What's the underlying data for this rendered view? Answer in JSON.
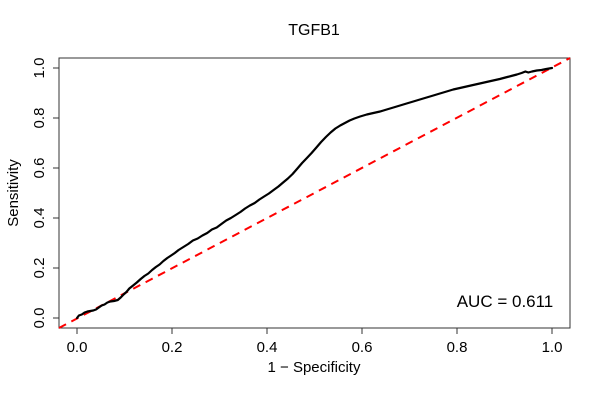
{
  "figure": {
    "background": "#FFFFFF",
    "box_color": "#333333",
    "text_color": "#000000"
  },
  "chart_data": {
    "type": "line",
    "subtype": "roc-curve",
    "title": "TGFB1",
    "xlabel": "1 − Specificity",
    "ylabel": "Sensitivity",
    "xlim": [
      0,
      1
    ],
    "ylim": [
      0,
      1
    ],
    "grid": false,
    "legend": "none",
    "x_ticks": {
      "values": [
        0,
        0.2,
        0.4,
        0.6,
        0.8,
        1.0
      ],
      "labels": [
        "0.0",
        "0.2",
        "0.4",
        "0.6",
        "0.8",
        "1.0"
      ]
    },
    "y_ticks": {
      "values": [
        0,
        0.2,
        0.4,
        0.6,
        0.8,
        1.0
      ],
      "labels": [
        "0.0",
        "0.2",
        "0.4",
        "0.6",
        "0.8",
        "1.0"
      ]
    },
    "annotation": {
      "text": "AUC = 0.611",
      "value": 0.611,
      "position": "bottom-right"
    },
    "series": [
      {
        "name": "ROC curve",
        "color": "#000000",
        "line_style": "solid",
        "line_width": 2.2,
        "points": [
          [
            0.0,
            0.0
          ],
          [
            0.004,
            0.01
          ],
          [
            0.01,
            0.014
          ],
          [
            0.016,
            0.022
          ],
          [
            0.022,
            0.026
          ],
          [
            0.028,
            0.028
          ],
          [
            0.034,
            0.03
          ],
          [
            0.04,
            0.034
          ],
          [
            0.046,
            0.042
          ],
          [
            0.052,
            0.05
          ],
          [
            0.058,
            0.054
          ],
          [
            0.064,
            0.062
          ],
          [
            0.07,
            0.066
          ],
          [
            0.078,
            0.068
          ],
          [
            0.086,
            0.072
          ],
          [
            0.092,
            0.082
          ],
          [
            0.098,
            0.094
          ],
          [
            0.104,
            0.104
          ],
          [
            0.11,
            0.118
          ],
          [
            0.118,
            0.13
          ],
          [
            0.126,
            0.142
          ],
          [
            0.134,
            0.156
          ],
          [
            0.142,
            0.168
          ],
          [
            0.15,
            0.178
          ],
          [
            0.158,
            0.192
          ],
          [
            0.166,
            0.204
          ],
          [
            0.174,
            0.214
          ],
          [
            0.182,
            0.228
          ],
          [
            0.19,
            0.24
          ],
          [
            0.198,
            0.25
          ],
          [
            0.206,
            0.26
          ],
          [
            0.214,
            0.272
          ],
          [
            0.224,
            0.284
          ],
          [
            0.234,
            0.296
          ],
          [
            0.244,
            0.31
          ],
          [
            0.254,
            0.318
          ],
          [
            0.264,
            0.33
          ],
          [
            0.274,
            0.34
          ],
          [
            0.284,
            0.354
          ],
          [
            0.294,
            0.362
          ],
          [
            0.304,
            0.376
          ],
          [
            0.314,
            0.39
          ],
          [
            0.324,
            0.4
          ],
          [
            0.334,
            0.412
          ],
          [
            0.344,
            0.424
          ],
          [
            0.354,
            0.438
          ],
          [
            0.364,
            0.45
          ],
          [
            0.374,
            0.46
          ],
          [
            0.384,
            0.474
          ],
          [
            0.394,
            0.486
          ],
          [
            0.404,
            0.498
          ],
          [
            0.414,
            0.512
          ],
          [
            0.424,
            0.526
          ],
          [
            0.434,
            0.542
          ],
          [
            0.444,
            0.558
          ],
          [
            0.454,
            0.576
          ],
          [
            0.464,
            0.598
          ],
          [
            0.474,
            0.62
          ],
          [
            0.484,
            0.64
          ],
          [
            0.494,
            0.66
          ],
          [
            0.504,
            0.682
          ],
          [
            0.514,
            0.704
          ],
          [
            0.524,
            0.724
          ],
          [
            0.534,
            0.742
          ],
          [
            0.544,
            0.758
          ],
          [
            0.554,
            0.77
          ],
          [
            0.564,
            0.78
          ],
          [
            0.574,
            0.79
          ],
          [
            0.584,
            0.798
          ],
          [
            0.596,
            0.806
          ],
          [
            0.61,
            0.814
          ],
          [
            0.624,
            0.82
          ],
          [
            0.638,
            0.826
          ],
          [
            0.652,
            0.834
          ],
          [
            0.666,
            0.842
          ],
          [
            0.68,
            0.85
          ],
          [
            0.694,
            0.858
          ],
          [
            0.708,
            0.866
          ],
          [
            0.722,
            0.874
          ],
          [
            0.736,
            0.882
          ],
          [
            0.75,
            0.89
          ],
          [
            0.764,
            0.898
          ],
          [
            0.778,
            0.906
          ],
          [
            0.792,
            0.914
          ],
          [
            0.806,
            0.92
          ],
          [
            0.82,
            0.926
          ],
          [
            0.834,
            0.932
          ],
          [
            0.848,
            0.938
          ],
          [
            0.862,
            0.944
          ],
          [
            0.876,
            0.95
          ],
          [
            0.89,
            0.956
          ],
          [
            0.902,
            0.962
          ],
          [
            0.914,
            0.968
          ],
          [
            0.926,
            0.974
          ],
          [
            0.936,
            0.98
          ],
          [
            0.944,
            0.986
          ],
          [
            0.95,
            0.982
          ],
          [
            0.958,
            0.986
          ],
          [
            0.968,
            0.99
          ],
          [
            0.978,
            0.992
          ],
          [
            0.988,
            0.996
          ],
          [
            1.0,
            1.0
          ]
        ]
      },
      {
        "name": "Chance diagonal",
        "color": "#FF0000",
        "line_style": "dashed",
        "line_width": 2,
        "points": [
          [
            -0.038,
            -0.04
          ],
          [
            1.038,
            1.04
          ]
        ]
      }
    ]
  }
}
